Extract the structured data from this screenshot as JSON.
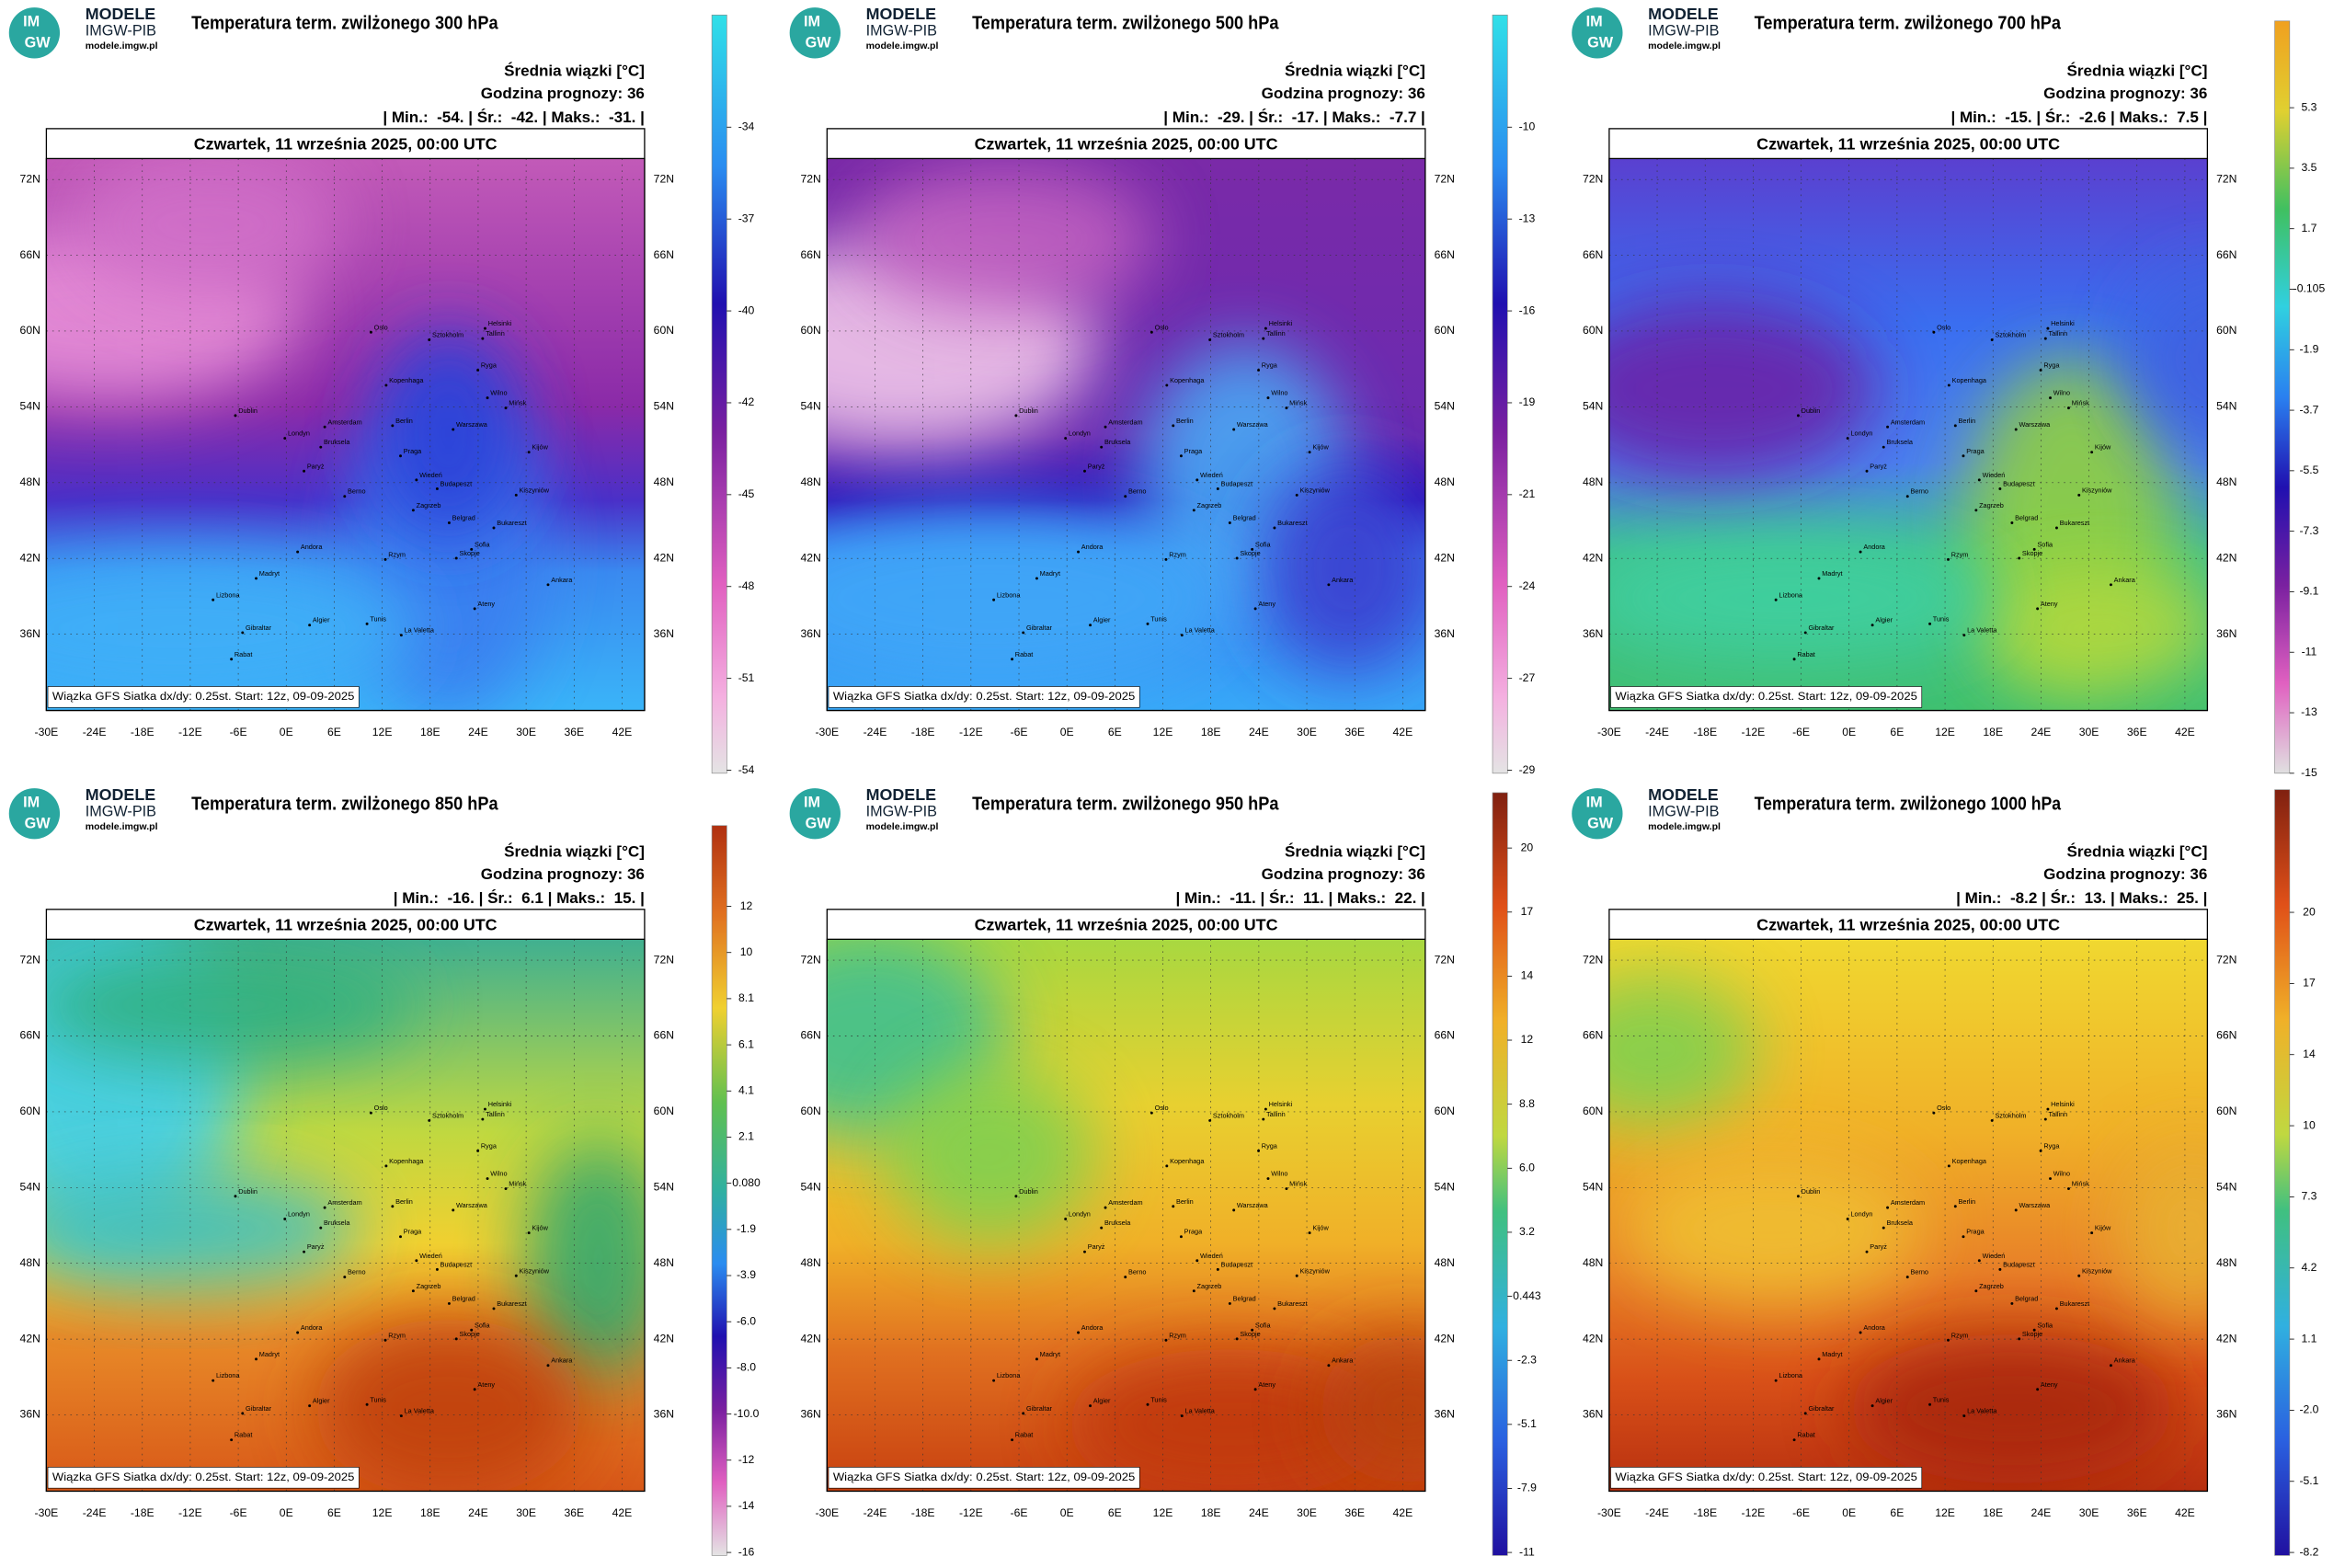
{
  "lat_labels": [
    "72N",
    "66N",
    "60N",
    "54N",
    "48N",
    "42N",
    "36N"
  ],
  "lon_labels": [
    "-30E",
    "-24E",
    "-18E",
    "-12E",
    "-6E",
    "0E",
    "6E",
    "12E",
    "18E",
    "24E",
    "30E",
    "36E",
    "42E"
  ],
  "cities": [
    "Oslo",
    "Helsinki",
    "Sztokholm",
    "Tallinn",
    "Ryga",
    "Wilno",
    "Kopenhaga",
    "Mińsk",
    "Dublin",
    "Amsterdam",
    "Berlin",
    "Warszawa",
    "Kijów",
    "Londyn",
    "Bruksela",
    "Paryż",
    "Praga",
    "Wiedeń",
    "Budapeszt",
    "Kiszyniów",
    "Berno",
    "Zagrzeb",
    "Belgrad",
    "Bukareszt",
    "Andora",
    "Sofia",
    "Madryt",
    "Rzym",
    "Skopje",
    "Lizbona",
    "Ateny",
    "Ankara",
    "Algier",
    "Tunis",
    "Gibraltar",
    "Rabat",
    "La Valetta"
  ],
  "panels": [
    {
      "logo": {
        "badge_top": "IM",
        "badge_bottom": "GW",
        "name": "MODELE",
        "org": "IMGW-PIB",
        "url": "modele.imgw.pl"
      },
      "title": "Temperatura term. zwilżonego 300 hPa",
      "legend_title": "Średnia wiązki [°C]",
      "forecast_hour": "Godzina prognozy: 36",
      "stats": "| Min.:  -54. | Śr.:  -42. | Maks.:  -31. |",
      "date": "Czwartek, 11 września 2025, 00:00 UTC",
      "footer": "Wiązka GFS Siatka dx/dy: 0.25st. Start: 12z, 09-09-2025",
      "colorbar_ticks": [
        "-34",
        "-37",
        "-40",
        "-42",
        "-45",
        "-48",
        "-51",
        "-54"
      ]
    },
    {
      "logo": {
        "badge_top": "IM",
        "badge_bottom": "GW",
        "name": "MODELE",
        "org": "IMGW-PIB",
        "url": "modele.imgw.pl"
      },
      "title": "Temperatura term. zwilżonego 500 hPa",
      "legend_title": "Średnia wiązki [°C]",
      "forecast_hour": "Godzina prognozy: 36",
      "stats": "| Min.:  -29. | Śr.:  -17. | Maks.:  -7.7 |",
      "date": "Czwartek, 11 września 2025, 00:00 UTC",
      "footer": "Wiązka GFS Siatka dx/dy: 0.25st. Start: 12z, 09-09-2025",
      "colorbar_ticks": [
        "-10",
        "-13",
        "-16",
        "-19",
        "-21",
        "-24",
        "-27",
        "-29"
      ]
    },
    {
      "logo": {
        "badge_top": "IM",
        "badge_bottom": "GW",
        "name": "MODELE",
        "org": "IMGW-PIB",
        "url": "modele.imgw.pl"
      },
      "title": "Temperatura term. zwilżonego 700 hPa",
      "legend_title": "Średnia wiązki [°C]",
      "forecast_hour": "Godzina prognozy: 36",
      "stats": "| Min.:  -15. | Śr.:  -2.6 | Maks.:  7.5 |",
      "date": "Czwartek, 11 września 2025, 00:00 UTC",
      "footer": "Wiązka GFS Siatka dx/dy: 0.25st. Start: 12z, 09-09-2025",
      "colorbar_ticks": [
        "5.3",
        "3.5",
        "1.7",
        "-0.105",
        "-1.9",
        "-3.7",
        "-5.5",
        "-7.3",
        "-9.1",
        "-11",
        "-13",
        "-15"
      ]
    },
    {
      "logo": {
        "badge_top": "IM",
        "badge_bottom": "GW",
        "name": "MODELE",
        "org": "IMGW-PIB",
        "url": "modele.imgw.pl"
      },
      "title": "Temperatura term. zwilżonego 850 hPa",
      "legend_title": "Średnia wiązki [°C]",
      "forecast_hour": "Godzina prognozy: 36",
      "stats": "| Min.:  -16. | Śr.:  6.1 | Maks.:  15. |",
      "date": "Czwartek, 11 września 2025, 00:00 UTC",
      "footer": "Wiązka GFS Siatka dx/dy: 0.25st. Start: 12z, 09-09-2025",
      "colorbar_ticks": [
        "12",
        "10",
        "8.1",
        "6.1",
        "4.1",
        "2.1",
        "0.080",
        "-1.9",
        "-3.9",
        "-6.0",
        "-8.0",
        "-10.0",
        "-12",
        "-14",
        "-16"
      ]
    },
    {
      "logo": {
        "badge_top": "IM",
        "badge_bottom": "GW",
        "name": "MODELE",
        "org": "IMGW-PIB",
        "url": "modele.imgw.pl"
      },
      "title": "Temperatura term. zwilżonego 950 hPa",
      "legend_title": "Średnia wiązki [°C]",
      "forecast_hour": "Godzina prognozy: 36",
      "stats": "| Min.:  -11. | Śr.:  11. | Maks.:  22. |",
      "date": "Czwartek, 11 września 2025, 00:00 UTC",
      "footer": "Wiązka GFS Siatka dx/dy: 0.25st. Start: 12z, 09-09-2025",
      "colorbar_ticks": [
        "20",
        "17",
        "14",
        "12",
        "8.8",
        "6.0",
        "3.2",
        "0.443",
        "-2.3",
        "-5.1",
        "-7.9",
        "-11"
      ]
    },
    {
      "logo": {
        "badge_top": "IM",
        "badge_bottom": "GW",
        "name": "MODELE",
        "org": "IMGW-PIB",
        "url": "modele.imgw.pl"
      },
      "title": "Temperatura term. zwilżonego 1000 hPa",
      "legend_title": "Średnia wiązki [°C]",
      "forecast_hour": "Godzina prognozy: 36",
      "stats": "| Min.:  -8.2 | Śr.:  13. | Maks.:  25. |",
      "date": "Czwartek, 11 września 2025, 00:00 UTC",
      "footer": "Wiązka GFS Siatka dx/dy: 0.25st. Start: 12z, 09-09-2025",
      "colorbar_ticks": [
        "20",
        "17",
        "14",
        "10",
        "7.3",
        "4.2",
        "1.1",
        "-2.0",
        "-5.1",
        "-8.2"
      ]
    }
  ]
}
